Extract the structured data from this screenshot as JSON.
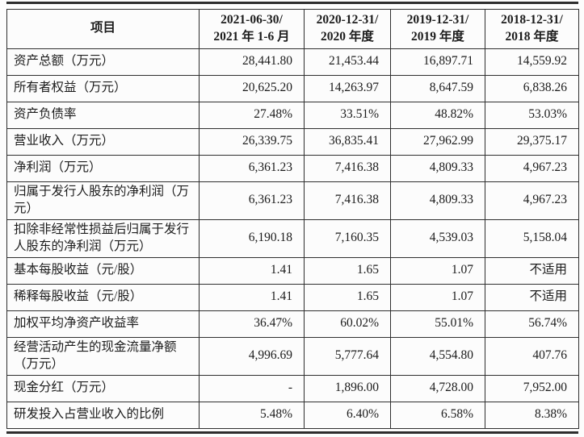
{
  "table": {
    "header": {
      "item_label": "项目",
      "periods": [
        {
          "line1": "2021-06-30/",
          "line2": "2021 年 1-6 月"
        },
        {
          "line1": "2020-12-31/",
          "line2": "2020 年度"
        },
        {
          "line1": "2019-12-31/",
          "line2": "2019 年度"
        },
        {
          "line1": "2018-12-31/",
          "line2": "2018 年度"
        }
      ]
    },
    "rows": [
      {
        "label": "资产总额（万元）",
        "tall": false,
        "values": [
          "28,441.80",
          "21,453.44",
          "16,897.71",
          "14,559.92"
        ]
      },
      {
        "label": "所有者权益（万元）",
        "tall": false,
        "values": [
          "20,625.20",
          "14,263.97",
          "8,647.59",
          "6,838.26"
        ]
      },
      {
        "label": "资产负债率",
        "tall": false,
        "values": [
          "27.48%",
          "33.51%",
          "48.82%",
          "53.03%"
        ]
      },
      {
        "label": "营业收入（万元）",
        "tall": false,
        "values": [
          "26,339.75",
          "36,835.41",
          "27,962.99",
          "29,375.17"
        ]
      },
      {
        "label": "净利润（万元）",
        "tall": false,
        "values": [
          "6,361.23",
          "7,416.38",
          "4,809.33",
          "4,967.23"
        ]
      },
      {
        "label": "归属于发行人股东的净利润（万元）",
        "tall": true,
        "values": [
          "6,361.23",
          "7,416.38",
          "4,809.33",
          "4,967.23"
        ]
      },
      {
        "label": "扣除非经常性损益后归属于发行人股东的净利润（万元）",
        "tall": true,
        "values": [
          "6,190.18",
          "7,160.35",
          "4,539.03",
          "5,158.04"
        ]
      },
      {
        "label": "基本每股收益（元/股）",
        "tall": false,
        "values": [
          "1.41",
          "1.65",
          "1.07",
          "不适用"
        ]
      },
      {
        "label": "稀释每股收益（元/股）",
        "tall": false,
        "values": [
          "1.41",
          "1.65",
          "1.07",
          "不适用"
        ]
      },
      {
        "label": "加权平均净资产收益率",
        "tall": false,
        "values": [
          "36.47%",
          "60.02%",
          "55.01%",
          "56.74%"
        ]
      },
      {
        "label": "经营活动产生的现金流量净额（万元）",
        "tall": true,
        "values": [
          "4,996.69",
          "5,777.64",
          "4,554.80",
          "407.76"
        ]
      },
      {
        "label": "现金分红（万元）",
        "tall": false,
        "values": [
          "-",
          "1,896.00",
          "4,728.00",
          "7,952.00"
        ]
      },
      {
        "label": "研发投入占营业收入的比例",
        "tall": false,
        "values": [
          "5.48%",
          "6.40%",
          "6.58%",
          "8.38%"
        ]
      }
    ]
  },
  "colors": {
    "border": "#2f2f2f",
    "text": "#1c1c1c",
    "background": "#fcfcfc"
  }
}
